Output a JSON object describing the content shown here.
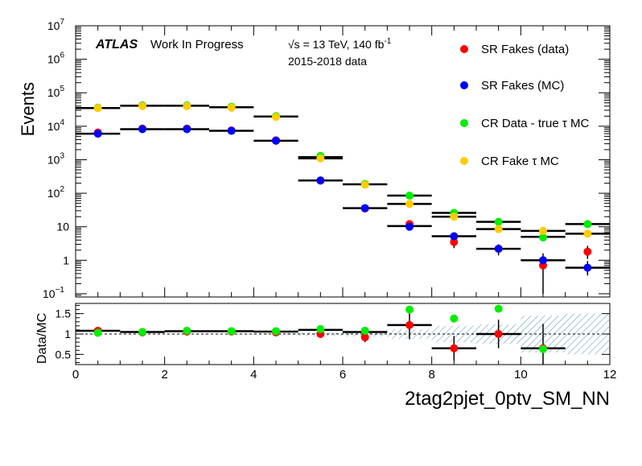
{
  "chart_data": [
    {
      "type": "scatter",
      "panel": "main",
      "ylabel": "Events",
      "yscale": "log",
      "ylim": [
        0.08,
        10000000
      ],
      "xlim": [
        0,
        12
      ],
      "y_ticks": [
        {
          "value": 0.1,
          "label": "10",
          "exp": "−1"
        },
        {
          "value": 1,
          "label": "1",
          "exp": ""
        },
        {
          "value": 10,
          "label": "10",
          "exp": ""
        },
        {
          "value": 100,
          "label": "10",
          "exp": "2"
        },
        {
          "value": 1000,
          "label": "10",
          "exp": "3"
        },
        {
          "value": 10000,
          "label": "10",
          "exp": "4"
        },
        {
          "value": 100000,
          "label": "10",
          "exp": "5"
        },
        {
          "value": 1000000,
          "label": "10",
          "exp": "6"
        },
        {
          "value": 10000000,
          "label": "10",
          "exp": "7"
        }
      ],
      "annotations": {
        "atlas": "ATLAS",
        "status": "Work In Progress",
        "energy_prefix": "√s = 13 TeV, 140 fb",
        "energy_exp": "-1",
        "years": "2015-2018 data"
      },
      "legend_position": "top-right",
      "series": [
        {
          "name": "SR Fakes (data)",
          "color": "#ff0000",
          "x": [
            0.5,
            1.5,
            2.5,
            3.5,
            4.5,
            5.5,
            6.5,
            7.5,
            8.5,
            9.5,
            10.5,
            11.5
          ],
          "y": [
            6500,
            8500,
            8500,
            7500,
            3800,
            240,
            35,
            12,
            3.5,
            2.2,
            0.7,
            1.8
          ],
          "y_err_low": [
            200,
            250,
            250,
            230,
            150,
            20,
            6,
            3,
            1.2,
            0.8,
            0.6,
            0.7
          ],
          "y_err_high": [
            200,
            250,
            250,
            230,
            150,
            20,
            6,
            3,
            1.2,
            0.8,
            0.9,
            0.9
          ]
        },
        {
          "name": "SR Fakes (MC)",
          "color": "#0000ff",
          "x": [
            0.5,
            1.5,
            2.5,
            3.5,
            4.5,
            5.5,
            6.5,
            7.5,
            8.5,
            9.5,
            10.5,
            11.5
          ],
          "y": [
            6000,
            8200,
            8200,
            7300,
            3700,
            240,
            36,
            10,
            5.2,
            2.2,
            1.0,
            0.6
          ],
          "y_err_low": [
            0,
            0,
            0,
            0,
            0,
            0,
            0,
            0,
            0,
            0,
            0,
            0.25
          ],
          "y_err_high": [
            0,
            0,
            0,
            0,
            0,
            0,
            0,
            0,
            0,
            0,
            0,
            0.35
          ]
        },
        {
          "name": "CR Data - true τ MC",
          "color": "#00ee00",
          "x": [
            0.5,
            1.5,
            2.5,
            3.5,
            4.5,
            5.5,
            6.5,
            7.5,
            8.5,
            9.5,
            10.5,
            11.5
          ],
          "y": [
            36000,
            42000,
            42000,
            38000,
            20000,
            1300,
            190,
            85,
            26,
            14,
            4.8,
            12
          ],
          "y_err_low": [
            0,
            0,
            0,
            0,
            0,
            0,
            0,
            0,
            0,
            0,
            0,
            0
          ],
          "y_err_high": [
            0,
            0,
            0,
            0,
            0,
            0,
            0,
            0,
            0,
            0,
            0,
            0
          ]
        },
        {
          "name": "CR Fake τ MC",
          "color": "#ffcc00",
          "x": [
            0.5,
            1.5,
            2.5,
            3.5,
            4.5,
            5.5,
            6.5,
            7.5,
            8.5,
            9.5,
            10.5,
            11.5
          ],
          "y": [
            35000,
            40000,
            40000,
            36000,
            19000,
            1100,
            180,
            48,
            20,
            8.5,
            7.5,
            6.2
          ],
          "y_err_low": [
            0,
            0,
            0,
            0,
            0,
            0,
            0,
            0,
            0,
            0,
            0,
            0
          ],
          "y_err_high": [
            0,
            0,
            0,
            0,
            0,
            0,
            0,
            0,
            0,
            0,
            0,
            0
          ]
        }
      ],
      "horizontal_bars": [
        {
          "x0": 0,
          "x1": 1,
          "y": 6000
        },
        {
          "x0": 1,
          "x1": 2,
          "y": 8200
        },
        {
          "x0": 2,
          "x1": 3,
          "y": 8200
        },
        {
          "x0": 3,
          "x1": 4,
          "y": 7300
        },
        {
          "x0": 4,
          "x1": 5,
          "y": 3700
        },
        {
          "x0": 5,
          "x1": 6,
          "y": 240
        },
        {
          "x0": 6,
          "x1": 7,
          "y": 36
        },
        {
          "x0": 7,
          "x1": 8,
          "y": 10.5
        },
        {
          "x0": 8,
          "x1": 9,
          "y": 5.2
        },
        {
          "x0": 9,
          "x1": 10,
          "y": 2.2
        },
        {
          "x0": 10,
          "x1": 11,
          "y": 1.0
        },
        {
          "x0": 11,
          "x1": 12,
          "y": 0.6
        },
        {
          "x0": 0,
          "x1": 1,
          "y": 35000
        },
        {
          "x0": 1,
          "x1": 2,
          "y": 41000
        },
        {
          "x0": 2,
          "x1": 3,
          "y": 41000
        },
        {
          "x0": 3,
          "x1": 4,
          "y": 37000
        },
        {
          "x0": 4,
          "x1": 5,
          "y": 19500
        },
        {
          "x0": 5,
          "x1": 6,
          "y": 1200
        },
        {
          "x0": 6,
          "x1": 7,
          "y": 185
        },
        {
          "x0": 7,
          "x1": 8,
          "y": 85
        },
        {
          "x0": 8,
          "x1": 9,
          "y": 26
        },
        {
          "x0": 9,
          "x1": 10,
          "y": 14
        },
        {
          "x0": 10,
          "x1": 11,
          "y": 7.5
        },
        {
          "x0": 11,
          "x1": 12,
          "y": 12
        },
        {
          "x0": 5,
          "x1": 6,
          "y": 1100
        },
        {
          "x0": 7,
          "x1": 8,
          "y": 48
        },
        {
          "x0": 8,
          "x1": 9,
          "y": 20
        },
        {
          "x0": 9,
          "x1": 10,
          "y": 8.5
        },
        {
          "x0": 10,
          "x1": 11,
          "y": 5
        },
        {
          "x0": 11,
          "x1": 12,
          "y": 6.2
        }
      ]
    },
    {
      "type": "scatter",
      "panel": "ratio",
      "ylabel": "Data/MC",
      "xlabel": "2tag2pjet_0ptv_SM_NN",
      "xlim": [
        0,
        12
      ],
      "ylim": [
        0.25,
        1.75
      ],
      "y_ticks": [
        0.5,
        1,
        1.5
      ],
      "y_tick_labels": [
        "0.5",
        "1",
        "1.5"
      ],
      "x_ticks": [
        0,
        2,
        4,
        6,
        8,
        10,
        12
      ],
      "x_tick_labels": [
        "0",
        "2",
        "4",
        "6",
        "8",
        "10",
        "12"
      ],
      "reference_line": 1,
      "uncertainty_band": {
        "x": [
          0.5,
          1.5,
          2.5,
          3.5,
          4.5,
          5.5,
          6.5,
          7.5,
          8.5,
          9.5,
          10.5,
          11.5
        ],
        "half_width": [
          0.01,
          0.01,
          0.01,
          0.01,
          0.02,
          0.04,
          0.06,
          0.12,
          0.2,
          0.24,
          0.45,
          0.5
        ]
      },
      "series": [
        {
          "name": "SR Fakes (data)",
          "color": "#ff0000",
          "x": [
            0.5,
            1.5,
            2.5,
            3.5,
            4.5,
            5.5,
            6.5,
            7.5,
            8.5,
            9.5,
            10.5,
            11.5
          ],
          "y": [
            1.08,
            1.04,
            1.06,
            1.06,
            1.04,
            1.0,
            0.92,
            1.22,
            0.65,
            1.0,
            0.65,
            null
          ],
          "y_err": [
            0.03,
            0.03,
            0.03,
            0.03,
            0.04,
            0.08,
            0.12,
            0.35,
            0.3,
            0.35,
            0.6,
            0
          ]
        },
        {
          "name": "CR Data - true τ MC",
          "color": "#00ee00",
          "x": [
            0.5,
            1.5,
            2.5,
            3.5,
            4.5,
            5.5,
            6.5,
            7.5,
            8.5,
            9.5,
            10.5,
            11.5
          ],
          "y": [
            1.03,
            1.05,
            1.08,
            1.07,
            1.07,
            1.12,
            1.08,
            1.6,
            1.38,
            1.62,
            0.63,
            null
          ],
          "y_err": [
            0,
            0,
            0,
            0,
            0,
            0,
            0,
            0,
            0,
            0,
            0,
            0
          ]
        }
      ],
      "ratio_bars": [
        {
          "x0": 0,
          "x1": 1,
          "y": 1.08
        },
        {
          "x0": 1,
          "x1": 2,
          "y": 1.05
        },
        {
          "x0": 2,
          "x1": 3,
          "y": 1.07
        },
        {
          "x0": 3,
          "x1": 4,
          "y": 1.07
        },
        {
          "x0": 4,
          "x1": 5,
          "y": 1.06
        },
        {
          "x0": 5,
          "x1": 6,
          "y": 1.1
        },
        {
          "x0": 6,
          "x1": 7,
          "y": 1.05
        },
        {
          "x0": 7,
          "x1": 8,
          "y": 1.22
        },
        {
          "x0": 8,
          "x1": 9,
          "y": 0.65
        },
        {
          "x0": 9,
          "x1": 10,
          "y": 1.0
        },
        {
          "x0": 10,
          "x1": 11,
          "y": 0.65
        }
      ]
    }
  ]
}
